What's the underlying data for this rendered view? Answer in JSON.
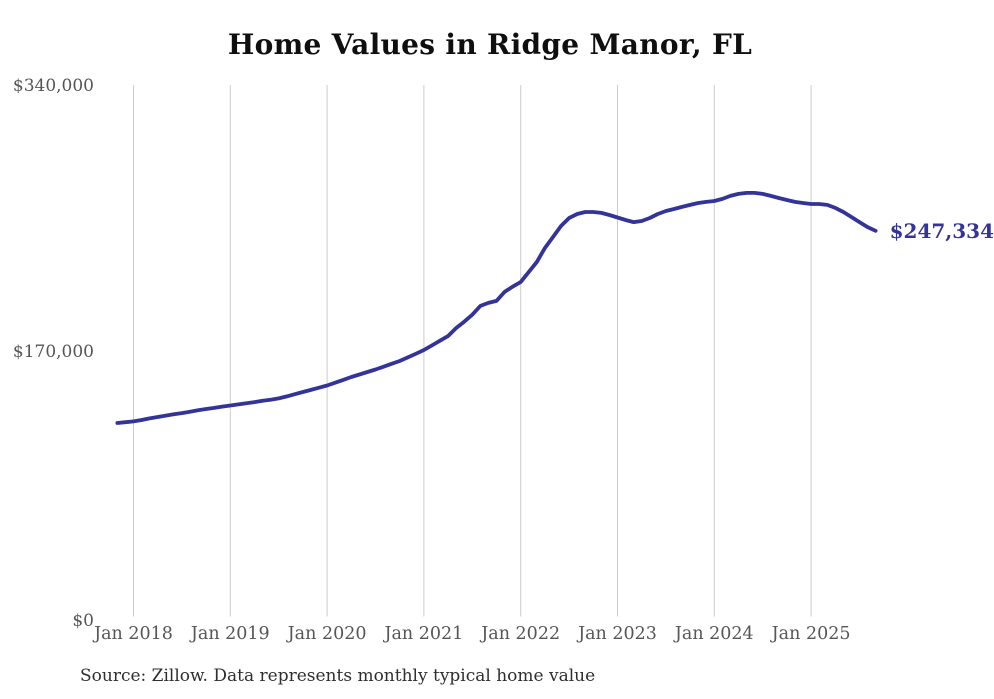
{
  "title": "Home Values in Ridge Manor, FL",
  "source_note": "Source: Zillow. Data represents monthly typical home value",
  "chart_data": {
    "type": "line",
    "title": "Home Values in Ridge Manor, FL",
    "series_name": "Monthly typical home value",
    "x": [
      "Nov 2017",
      "Dec 2017",
      "Jan 2018",
      "Feb 2018",
      "Mar 2018",
      "Apr 2018",
      "May 2018",
      "Jun 2018",
      "Jul 2018",
      "Aug 2018",
      "Sep 2018",
      "Oct 2018",
      "Nov 2018",
      "Dec 2018",
      "Jan 2019",
      "Feb 2019",
      "Mar 2019",
      "Apr 2019",
      "May 2019",
      "Jun 2019",
      "Jul 2019",
      "Aug 2019",
      "Sep 2019",
      "Oct 2019",
      "Nov 2019",
      "Dec 2019",
      "Jan 2020",
      "Feb 2020",
      "Mar 2020",
      "Apr 2020",
      "May 2020",
      "Jun 2020",
      "Jul 2020",
      "Aug 2020",
      "Sep 2020",
      "Oct 2020",
      "Nov 2020",
      "Dec 2020",
      "Jan 2021",
      "Feb 2021",
      "Mar 2021",
      "Apr 2021",
      "May 2021",
      "Jun 2021",
      "Jul 2021",
      "Aug 2021",
      "Sep 2021",
      "Oct 2021",
      "Nov 2021",
      "Dec 2021",
      "Jan 2022",
      "Feb 2022",
      "Mar 2022",
      "Apr 2022",
      "May 2022",
      "Jun 2022",
      "Jul 2022",
      "Aug 2022",
      "Sep 2022",
      "Oct 2022",
      "Nov 2022",
      "Dec 2022",
      "Jan 2023",
      "Feb 2023",
      "Mar 2023",
      "Apr 2023",
      "May 2023",
      "Jun 2023",
      "Jul 2023",
      "Aug 2023",
      "Sep 2023",
      "Oct 2023",
      "Nov 2023",
      "Dec 2023",
      "Jan 2024",
      "Feb 2024",
      "Mar 2024",
      "Apr 2024",
      "May 2024",
      "Jun 2024",
      "Jul 2024",
      "Aug 2024",
      "Sep 2024",
      "Oct 2024",
      "Nov 2024",
      "Dec 2024",
      "Jan 2025",
      "Feb 2025",
      "Mar 2025",
      "Apr 2025",
      "May 2025",
      "Jun 2025",
      "Jul 2025",
      "Aug 2025",
      "Sep 2025"
    ],
    "values": [
      125200,
      125700,
      126200,
      127100,
      128100,
      129000,
      129900,
      130700,
      131500,
      132400,
      133300,
      134100,
      134800,
      135600,
      136300,
      137000,
      137800,
      138500,
      139300,
      140000,
      140800,
      142100,
      143500,
      144900,
      146200,
      147600,
      149000,
      150800,
      152600,
      154400,
      156000,
      157600,
      159200,
      161000,
      162800,
      164600,
      166900,
      169200,
      171600,
      174500,
      177500,
      180500,
      185600,
      189600,
      194000,
      199600,
      201500,
      202800,
      208500,
      211800,
      214800,
      221200,
      227500,
      236400,
      243400,
      250400,
      255500,
      258000,
      259300,
      259300,
      258700,
      257400,
      255800,
      254200,
      252900,
      253600,
      255500,
      258000,
      259900,
      261200,
      262500,
      263800,
      265000,
      265700,
      266300,
      267600,
      269500,
      270800,
      271400,
      271400,
      270800,
      269500,
      268200,
      266900,
      265700,
      265000,
      264400,
      264400,
      263800,
      261900,
      259300,
      256100,
      252900,
      249700,
      247334
    ],
    "ylim": [
      0,
      340000
    ],
    "ytick_values": [
      340000,
      170000,
      0
    ],
    "ytick_labels": [
      "$340,000",
      "$170,000",
      "$0"
    ],
    "xtick_labels": [
      "Jan 2018",
      "Jan 2019",
      "Jan 2020",
      "Jan 2021",
      "Jan 2022",
      "Jan 2023",
      "Jan 2024",
      "Jan 2025"
    ],
    "end_label": "$247,334",
    "end_value": 247334,
    "line_color": "#333399",
    "grid_color": "#cccccc",
    "grid": "vertical-only",
    "legend": "none"
  }
}
